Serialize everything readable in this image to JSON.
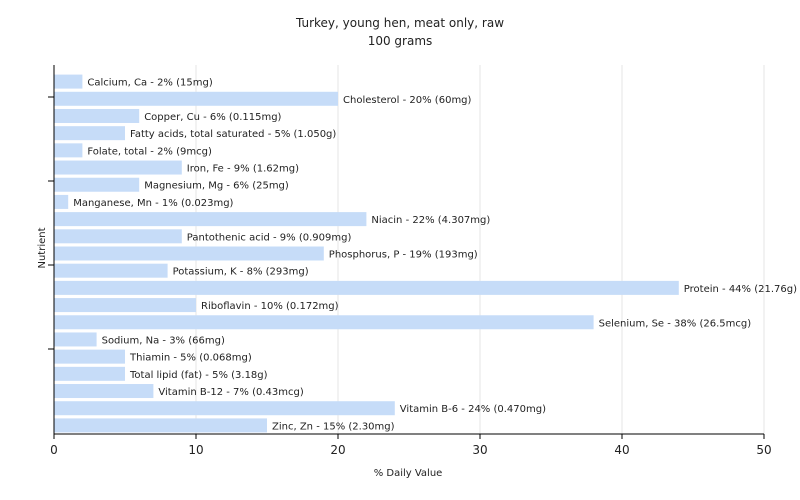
{
  "chart_data": {
    "type": "bar",
    "orientation": "horizontal",
    "title": "Turkey, young hen, meat only, raw",
    "subtitle": "100 grams",
    "xlabel": "% Daily Value",
    "ylabel": "Nutrient",
    "xlim": [
      0,
      50
    ],
    "xticks": [
      0,
      10,
      20,
      30,
      40,
      50
    ],
    "grid": "vertical",
    "bar_color": "#c6dcf8",
    "categories": [
      "Calcium, Ca",
      "Cholesterol",
      "Copper, Cu",
      "Fatty acids, total saturated",
      "Folate, total",
      "Iron, Fe",
      "Magnesium, Mg",
      "Manganese, Mn",
      "Niacin",
      "Pantothenic acid",
      "Phosphorus, P",
      "Potassium, K",
      "Protein",
      "Riboflavin",
      "Selenium, Se",
      "Sodium, Na",
      "Thiamin",
      "Total lipid (fat)",
      "Vitamin B-12",
      "Vitamin B-6",
      "Zinc, Zn"
    ],
    "values": [
      2,
      20,
      6,
      5,
      2,
      9,
      6,
      1,
      22,
      9,
      19,
      8,
      44,
      10,
      38,
      3,
      5,
      5,
      7,
      24,
      15
    ],
    "labels": [
      "Calcium, Ca - 2% (15mg)",
      "Cholesterol - 20% (60mg)",
      "Copper, Cu - 6% (0.115mg)",
      "Fatty acids, total saturated - 5% (1.050g)",
      "Folate, total - 2% (9mcg)",
      "Iron, Fe - 9% (1.62mg)",
      "Magnesium, Mg - 6% (25mg)",
      "Manganese, Mn - 1% (0.023mg)",
      "Niacin - 22% (4.307mg)",
      "Pantothenic acid - 9% (0.909mg)",
      "Phosphorus, P - 19% (193mg)",
      "Potassium, K - 8% (293mg)",
      "Protein - 44% (21.76g)",
      "Riboflavin - 10% (0.172mg)",
      "Selenium, Se - 38% (26.5mcg)",
      "Sodium, Na - 3% (66mg)",
      "Thiamin - 5% (0.068mg)",
      "Total lipid (fat) - 5% (3.18g)",
      "Vitamin B-12 - 7% (0.43mcg)",
      "Vitamin B-6 - 24% (0.470mg)",
      "Zinc, Zn - 15% (2.30mg)"
    ]
  }
}
